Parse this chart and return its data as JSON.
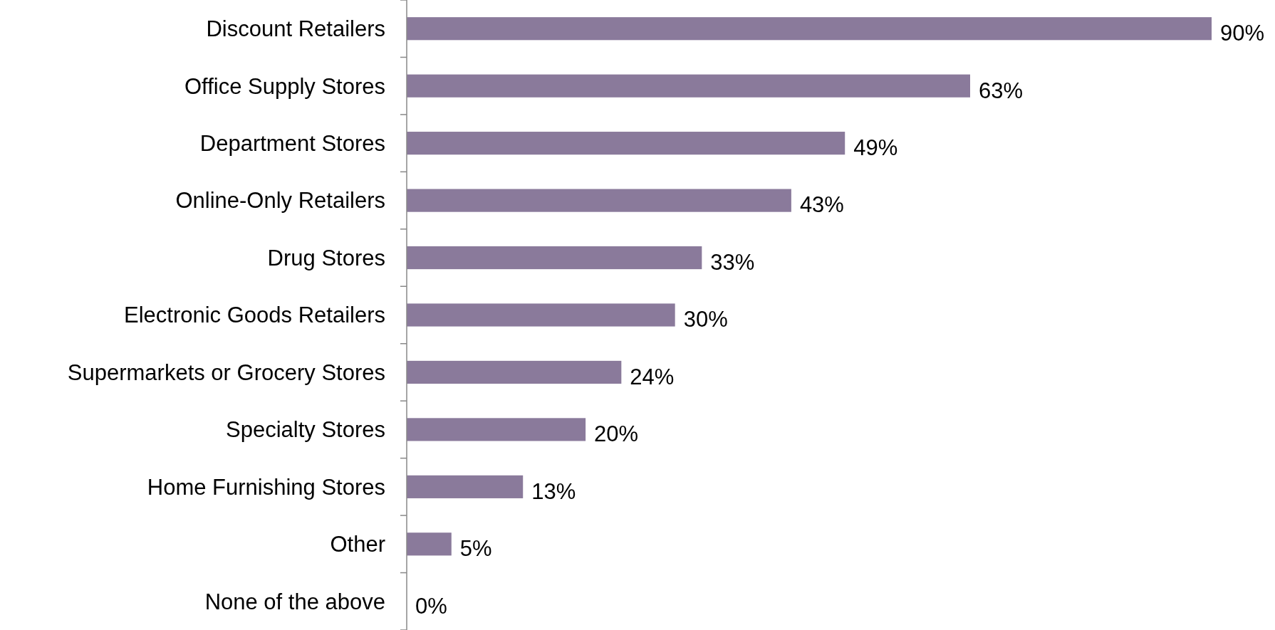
{
  "chart_data": {
    "type": "bar",
    "orientation": "horizontal",
    "categories": [
      "Discount Retailers",
      "Office Supply Stores",
      "Department Stores",
      "Online-Only Retailers",
      "Drug Stores",
      "Electronic Goods Retailers",
      "Supermarkets or Grocery Stores",
      "Specialty Stores",
      "Home Furnishing Stores",
      "Other",
      "None of the above"
    ],
    "values": [
      90,
      63,
      49,
      43,
      33,
      30,
      24,
      20,
      13,
      5,
      0
    ],
    "value_labels": [
      "90%",
      "63%",
      "49%",
      "43%",
      "33%",
      "30%",
      "24%",
      "20%",
      "13%",
      "5%",
      "0%"
    ],
    "color": "#8a7a9b"
  }
}
